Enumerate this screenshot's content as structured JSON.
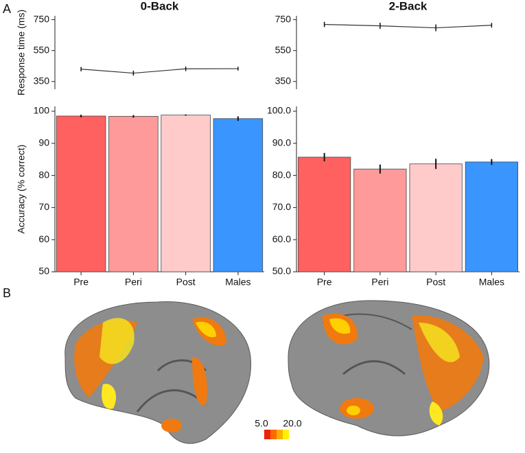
{
  "panels": [
    "A",
    "B"
  ],
  "colorbar": {
    "min_label": "5.0",
    "max_label": "20.0",
    "colors": [
      "#e8240c",
      "#ff6a00",
      "#ffae00",
      "#fff200"
    ]
  },
  "chart_data": [
    {
      "type": "line",
      "title": "0-Back",
      "ylabel": "Response time (ms)",
      "categories": [
        null,
        null,
        null,
        null
      ],
      "values": [
        430,
        404,
        432,
        433
      ],
      "errors": [
        14,
        16,
        15,
        12
      ],
      "color": "#333333",
      "ylim": [
        300,
        775
      ],
      "yticks": [
        350,
        550,
        750
      ]
    },
    {
      "type": "line",
      "title": "2-Back",
      "categories": [
        null,
        null,
        null,
        null
      ],
      "values": [
        719,
        710,
        697,
        714
      ],
      "errors": [
        17,
        20,
        22,
        15
      ],
      "color": "#333333",
      "ylim": [
        300,
        775
      ],
      "yticks": [
        350,
        550,
        750
      ]
    },
    {
      "type": "bar",
      "ylabel": "Accuracy (% correct)",
      "categories": [
        "Pre",
        "Peri",
        "Post",
        "Males"
      ],
      "values": [
        98.5,
        98.4,
        98.8,
        97.7
      ],
      "errors": [
        0.4,
        0.4,
        0.2,
        0.7
      ],
      "colors": [
        "#ff6161",
        "#ff9a9a",
        "#ffcaca",
        "#3a95ff"
      ],
      "ylim": [
        50,
        101.5
      ],
      "yticks": [
        50,
        60,
        70,
        80,
        90,
        100
      ]
    },
    {
      "type": "bar",
      "categories": [
        "Pre",
        "Peri",
        "Post",
        "Males"
      ],
      "values": [
        85.7,
        82.0,
        83.6,
        84.2
      ],
      "errors": [
        1.3,
        1.4,
        1.6,
        0.9
      ],
      "colors": [
        "#ff6161",
        "#ff9a9a",
        "#ffcaca",
        "#3a95ff"
      ],
      "ylim": [
        50,
        101.5
      ],
      "yticks": [
        {
          "value": 50,
          "label": "50.0"
        },
        {
          "value": 60,
          "label": "60.0"
        },
        {
          "value": 70,
          "label": "70.0"
        },
        {
          "value": 80,
          "label": "80.0"
        },
        {
          "value": 90,
          "label": "90.0"
        },
        {
          "value": 100,
          "label": "100.0"
        }
      ]
    }
  ]
}
